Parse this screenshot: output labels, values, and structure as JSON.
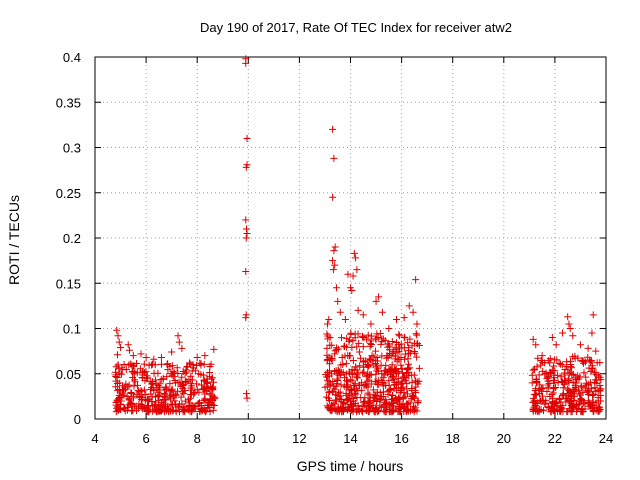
{
  "chart_data": {
    "type": "scatter",
    "title": "Day 190 of 2017, Rate Of TEC Index for receiver atw2",
    "xlabel": "GPS time / hours",
    "ylabel": "ROTI / TECUs",
    "xlim": [
      4,
      24
    ],
    "ylim": [
      0,
      0.4
    ],
    "x_ticks": [
      4,
      6,
      8,
      10,
      12,
      14,
      16,
      18,
      20,
      22,
      24
    ],
    "y_ticks": [
      0,
      0.05,
      0.1,
      0.15,
      0.2,
      0.25,
      0.3,
      0.35,
      0.4
    ],
    "x_tick_labels": [
      "4",
      "6",
      "8",
      "10",
      "12",
      "14",
      "16",
      "18",
      "20",
      "22",
      "24"
    ],
    "y_tick_labels": [
      "0",
      "0.05",
      "0.1",
      "0.15",
      "0.2",
      "0.25",
      "0.3",
      "0.35",
      "0.4"
    ],
    "grid": true,
    "marker": "+",
    "color": "#e00000",
    "series": [
      {
        "name": "ROTI",
        "points": [
          [
            4.85,
            0.098
          ],
          [
            4.9,
            0.092
          ],
          [
            4.95,
            0.085
          ],
          [
            5.0,
            0.079
          ],
          [
            4.88,
            0.071
          ],
          [
            5.3,
            0.082
          ],
          [
            5.35,
            0.076
          ],
          [
            5.5,
            0.07
          ],
          [
            5.8,
            0.072
          ],
          [
            6.0,
            0.068
          ],
          [
            6.3,
            0.066
          ],
          [
            6.6,
            0.068
          ],
          [
            7.0,
            0.074
          ],
          [
            7.25,
            0.092
          ],
          [
            7.3,
            0.085
          ],
          [
            7.4,
            0.078
          ],
          [
            7.7,
            0.062
          ],
          [
            8.0,
            0.068
          ],
          [
            8.3,
            0.07
          ],
          [
            8.65,
            0.077
          ],
          [
            9.9,
            0.398
          ],
          [
            9.9,
            0.393
          ],
          [
            9.95,
            0.31
          ],
          [
            9.95,
            0.281
          ],
          [
            9.92,
            0.278
          ],
          [
            9.9,
            0.22
          ],
          [
            9.93,
            0.21
          ],
          [
            9.95,
            0.205
          ],
          [
            9.92,
            0.2
          ],
          [
            9.9,
            0.163
          ],
          [
            9.92,
            0.115
          ],
          [
            9.9,
            0.112
          ],
          [
            9.93,
            0.028
          ],
          [
            9.95,
            0.023
          ],
          [
            13.1,
            0.105
          ],
          [
            13.15,
            0.11
          ],
          [
            13.2,
            0.09
          ],
          [
            13.3,
            0.32
          ],
          [
            13.35,
            0.288
          ],
          [
            13.3,
            0.245
          ],
          [
            13.4,
            0.19
          ],
          [
            13.35,
            0.186
          ],
          [
            13.3,
            0.175
          ],
          [
            13.38,
            0.17
          ],
          [
            13.33,
            0.165
          ],
          [
            13.45,
            0.145
          ],
          [
            13.5,
            0.13
          ],
          [
            13.6,
            0.118
          ],
          [
            13.8,
            0.11
          ],
          [
            13.9,
            0.16
          ],
          [
            14.0,
            0.145
          ],
          [
            14.05,
            0.142
          ],
          [
            14.1,
            0.158
          ],
          [
            14.15,
            0.183
          ],
          [
            14.2,
            0.178
          ],
          [
            14.25,
            0.165
          ],
          [
            14.3,
            0.12
          ],
          [
            14.5,
            0.115
          ],
          [
            14.8,
            0.105
          ],
          [
            15.0,
            0.13
          ],
          [
            15.1,
            0.135
          ],
          [
            15.25,
            0.118
          ],
          [
            15.5,
            0.1
          ],
          [
            15.8,
            0.11
          ],
          [
            16.1,
            0.112
          ],
          [
            16.3,
            0.125
          ],
          [
            16.45,
            0.118
          ],
          [
            16.55,
            0.154
          ],
          [
            16.6,
            0.105
          ],
          [
            21.15,
            0.088
          ],
          [
            21.25,
            0.082
          ],
          [
            21.5,
            0.07
          ],
          [
            21.9,
            0.09
          ],
          [
            22.05,
            0.082
          ],
          [
            22.3,
            0.095
          ],
          [
            22.5,
            0.113
          ],
          [
            22.55,
            0.105
          ],
          [
            22.6,
            0.1
          ],
          [
            22.7,
            0.092
          ],
          [
            23.0,
            0.082
          ],
          [
            23.3,
            0.078
          ],
          [
            23.5,
            0.115
          ],
          [
            23.45,
            0.095
          ],
          [
            23.6,
            0.075
          ]
        ],
        "dense_clusters": [
          {
            "x_range": [
              4.8,
              8.7
            ],
            "y_range": [
              0.008,
              0.062
            ],
            "count": 420
          },
          {
            "x_range": [
              13.0,
              16.7
            ],
            "y_range": [
              0.008,
              0.095
            ],
            "count": 560
          },
          {
            "x_range": [
              21.1,
              23.8
            ],
            "y_range": [
              0.008,
              0.07
            ],
            "count": 320
          }
        ]
      }
    ]
  }
}
